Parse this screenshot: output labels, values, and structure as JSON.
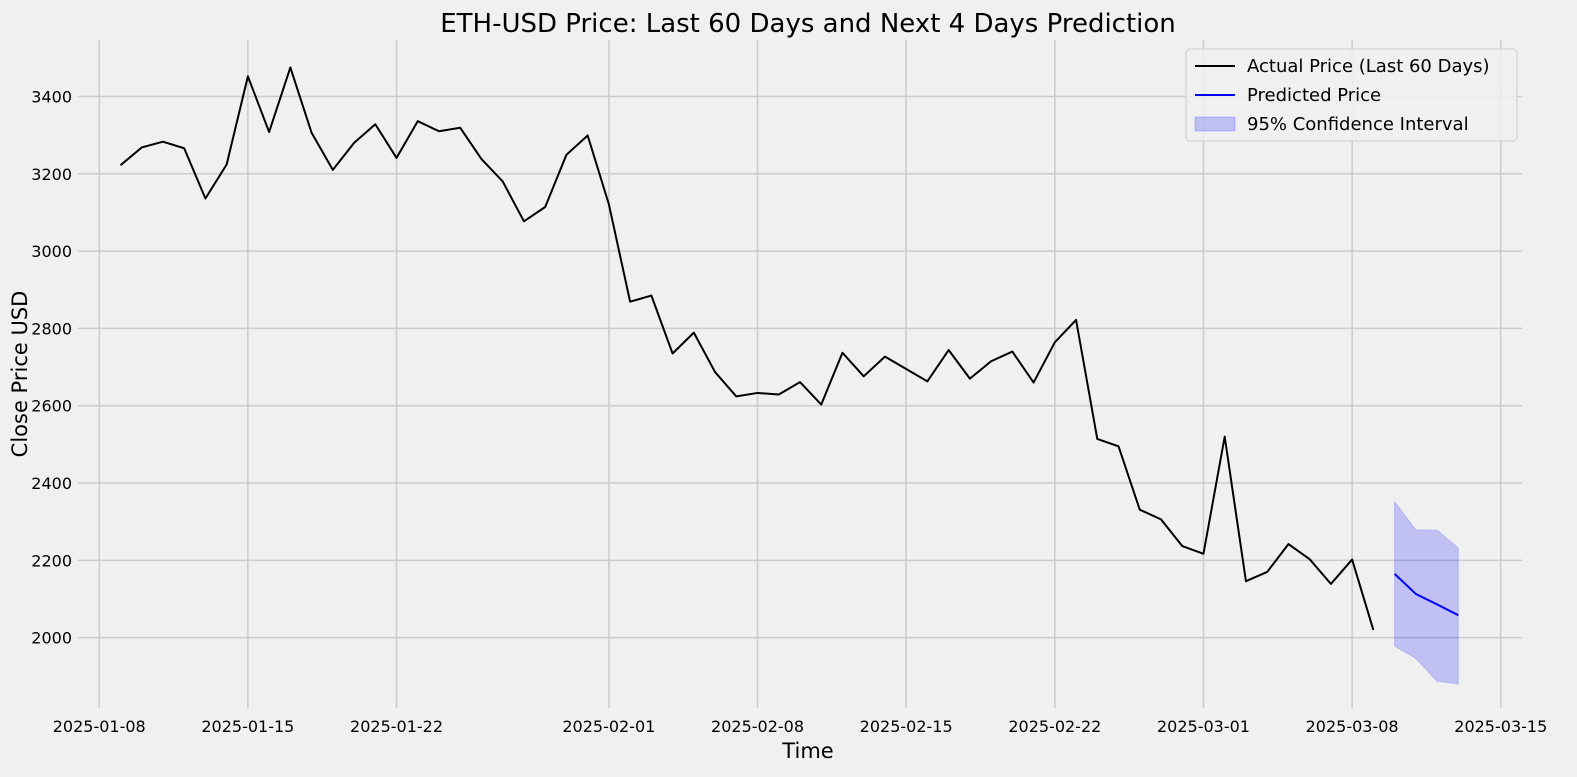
{
  "chart_data": {
    "type": "line",
    "title": "ETH-USD Price: Last 60 Days and Next 4 Days Prediction",
    "xlabel": "Time",
    "ylabel": "Close Price USD",
    "x_ticks": [
      "2025-01-08",
      "2025-01-15",
      "2025-01-22",
      "2025-02-01",
      "2025-02-08",
      "2025-02-15",
      "2025-02-22",
      "2025-03-01",
      "2025-03-08",
      "2025-03-15"
    ],
    "y_ticks": [
      2000,
      2200,
      2400,
      2600,
      2800,
      3000,
      3200,
      3400
    ],
    "xlim": [
      "2025-01-07",
      "2025-03-16"
    ],
    "ylim": [
      1818,
      3546
    ],
    "grid": true,
    "legend_position": "top-right",
    "colors": {
      "background": "#f0f0f0",
      "grid": "#cbcbcb",
      "actual": "#000000",
      "predicted": "#0000ff",
      "confidence": "#0000ff"
    },
    "series": [
      {
        "name": "Actual Price (Last 60 Days)",
        "kind": "line",
        "x": [
          "2025-01-09",
          "2025-01-10",
          "2025-01-11",
          "2025-01-12",
          "2025-01-13",
          "2025-01-14",
          "2025-01-15",
          "2025-01-16",
          "2025-01-17",
          "2025-01-18",
          "2025-01-19",
          "2025-01-20",
          "2025-01-21",
          "2025-01-22",
          "2025-01-23",
          "2025-01-24",
          "2025-01-25",
          "2025-01-26",
          "2025-01-27",
          "2025-01-28",
          "2025-01-29",
          "2025-01-30",
          "2025-01-31",
          "2025-02-01",
          "2025-02-02",
          "2025-02-03",
          "2025-02-04",
          "2025-02-05",
          "2025-02-06",
          "2025-02-07",
          "2025-02-08",
          "2025-02-09",
          "2025-02-10",
          "2025-02-11",
          "2025-02-12",
          "2025-02-13",
          "2025-02-14",
          "2025-02-15",
          "2025-02-16",
          "2025-02-17",
          "2025-02-18",
          "2025-02-19",
          "2025-02-20",
          "2025-02-21",
          "2025-02-22",
          "2025-02-23",
          "2025-02-24",
          "2025-02-25",
          "2025-02-26",
          "2025-02-27",
          "2025-02-28",
          "2025-03-01",
          "2025-03-02",
          "2025-03-03",
          "2025-03-04",
          "2025-03-05",
          "2025-03-06",
          "2025-03-07",
          "2025-03-08",
          "2025-03-09"
        ],
        "y": [
          3222,
          3268,
          3283,
          3266,
          3136,
          3224,
          3452,
          3308,
          3475,
          3306,
          3210,
          3280,
          3328,
          3241,
          3336,
          3310,
          3319,
          3238,
          3180,
          3077,
          3114,
          3249,
          3299,
          3121,
          2869,
          2885,
          2735,
          2789,
          2687,
          2624,
          2633,
          2629,
          2661,
          2603,
          2737,
          2676,
          2727,
          2695,
          2663,
          2744,
          2670,
          2715,
          2740,
          2660,
          2764,
          2822,
          2514,
          2495,
          2331,
          2306,
          2237,
          2217,
          2520,
          2146,
          2170,
          2242,
          2203,
          2139,
          2202,
          2020
        ]
      },
      {
        "name": "Predicted Price",
        "kind": "line",
        "x": [
          "2025-03-10",
          "2025-03-11",
          "2025-03-12",
          "2025-03-13"
        ],
        "y": [
          2165,
          2113,
          2086,
          2058
        ]
      },
      {
        "name": "95% Confidence Interval",
        "kind": "band",
        "x": [
          "2025-03-10",
          "2025-03-11",
          "2025-03-12",
          "2025-03-13"
        ],
        "lower": [
          1978,
          1946,
          1887,
          1880
        ],
        "upper": [
          2352,
          2279,
          2278,
          2232
        ]
      }
    ]
  }
}
